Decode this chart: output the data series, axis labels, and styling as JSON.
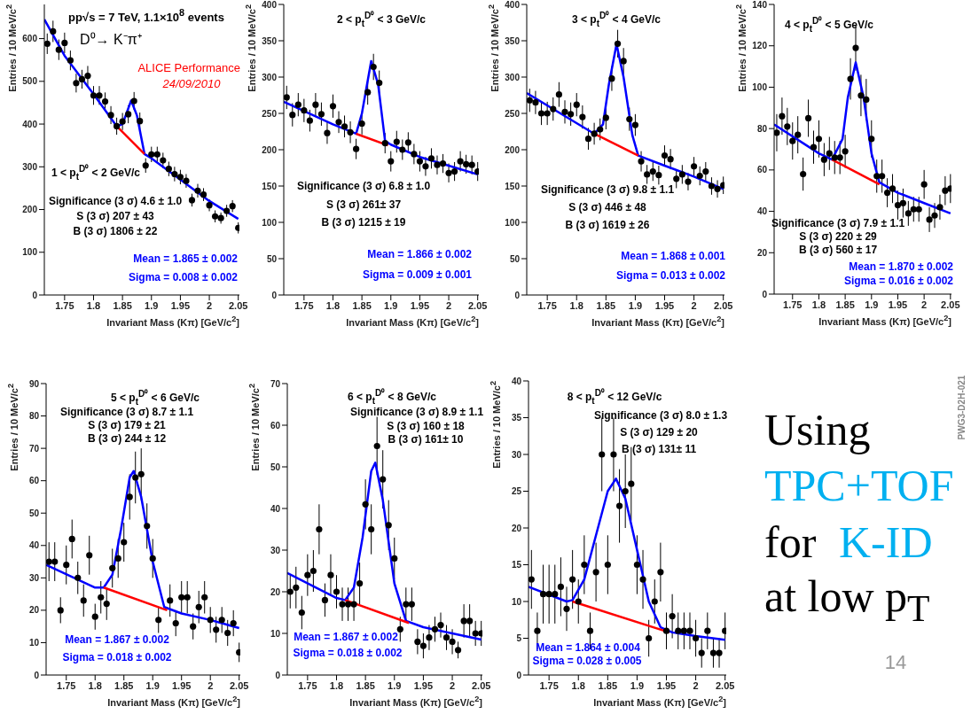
{
  "chart_data": [
    {
      "type": "scatter",
      "title": "1 < p$_{t}$$^{D⁰}$ < 2 GeV/c",
      "xlabel": "Invariant Mass (Kπ) [GeV/c$^{2}$]",
      "ylabel": "Entries / 10 MeV/c$^{2}$",
      "xlim": [
        1.715,
        2.052
      ],
      "xticks": [
        1.75,
        1.8,
        1.85,
        1.9,
        1.95,
        2,
        2.05
      ],
      "ylim": [
        0,
        680
      ],
      "yticks": [
        0,
        100,
        200,
        300,
        400,
        500,
        600
      ],
      "x": [
        1.72,
        1.73,
        1.74,
        1.75,
        1.76,
        1.77,
        1.78,
        1.79,
        1.8,
        1.81,
        1.82,
        1.83,
        1.84,
        1.85,
        1.86,
        1.87,
        1.88,
        1.89,
        1.9,
        1.91,
        1.92,
        1.93,
        1.94,
        1.95,
        1.96,
        1.97,
        1.98,
        1.99,
        2,
        2.01,
        2.02,
        2.03,
        2.04,
        2.05
      ],
      "series": [
        {
          "type": "scatter",
          "marker": "circle",
          "color": "#000000",
          "values": [
            588,
            617,
            574,
            590,
            549,
            496,
            505,
            513,
            467,
            467,
            453,
            421,
            395,
            406,
            423,
            454,
            407,
            303,
            329,
            329,
            315,
            295,
            283,
            276,
            267,
            222,
            244,
            235,
            210,
            184,
            180,
            197,
            208,
            157
          ],
          "errors": [
            24,
            25,
            24,
            24,
            23,
            22,
            22,
            23,
            22,
            22,
            21,
            21,
            20,
            20,
            21,
            21,
            20,
            17,
            18,
            18,
            18,
            17,
            17,
            17,
            16,
            15,
            16,
            15,
            14,
            14,
            13,
            14,
            14,
            13
          ]
        },
        {
          "type": "line",
          "color": "#0000ff",
          "x": [
            1.715,
            1.75,
            1.8,
            1.84,
            1.85,
            1.865,
            1.875,
            1.888,
            1.9,
            1.95,
            2,
            2.05
          ],
          "values": [
            645,
            560,
            470,
            395,
            400,
            455,
            420,
            330,
            320,
            270,
            220,
            178
          ]
        },
        {
          "type": "line",
          "color": "#ff0000",
          "x": [
            1.84,
            1.888
          ],
          "values": [
            395,
            330
          ]
        }
      ],
      "annotations": [
        "pp√s = 7 TeV, 1.1×10$^{8}$ events",
        "D⁰→ K⁻π⁺",
        "ALICE Performance",
        "24/09/2010",
        "Significance (3 σ) 4.6 ± 1.0",
        "S (3 σ) 207 ± 43",
        "B (3 σ) 1806 ± 22",
        "Mean = 1.865 ± 0.002",
        "Sigma = 0.008 ± 0.002"
      ]
    },
    {
      "type": "scatter",
      "title": "2 < p$_{t}$$^{D⁰}$ < 3 GeV/c",
      "xlabel": "Invariant Mass (Kπ) [GeV/c$^{2}$]",
      "ylabel": "Entries / 10 MeV/c$^{2}$",
      "xlim": [
        1.715,
        2.052
      ],
      "xticks": [
        1.75,
        1.8,
        1.85,
        1.9,
        1.95,
        2,
        2.05
      ],
      "ylim": [
        0,
        400
      ],
      "yticks": [
        0,
        50,
        100,
        150,
        200,
        250,
        300,
        350,
        400
      ],
      "x": [
        1.72,
        1.73,
        1.74,
        1.75,
        1.76,
        1.77,
        1.78,
        1.79,
        1.8,
        1.81,
        1.82,
        1.83,
        1.84,
        1.85,
        1.86,
        1.87,
        1.88,
        1.89,
        1.9,
        1.91,
        1.92,
        1.93,
        1.94,
        1.95,
        1.96,
        1.97,
        1.98,
        1.99,
        2,
        2.01,
        2.02,
        2.03,
        2.04,
        2.05
      ],
      "series": [
        {
          "type": "scatter",
          "marker": "circle",
          "color": "#000000",
          "values": [
            272,
            248,
            262,
            254,
            240,
            262,
            249,
            223,
            260,
            238,
            232,
            224,
            201,
            236,
            279,
            314,
            292,
            209,
            184,
            211,
            200,
            210,
            194,
            184,
            177,
            188,
            179,
            181,
            168,
            170,
            184,
            180,
            179,
            170
          ],
          "errors": [
            16,
            16,
            16,
            16,
            15,
            16,
            16,
            15,
            16,
            15,
            15,
            15,
            14,
            15,
            17,
            18,
            17,
            14,
            14,
            15,
            14,
            14,
            14,
            14,
            13,
            14,
            13,
            13,
            13,
            13,
            14,
            13,
            13,
            13
          ]
        },
        {
          "type": "line",
          "color": "#0000ff",
          "x": [
            1.715,
            1.8,
            1.84,
            1.85,
            1.866,
            1.878,
            1.89,
            1.9,
            1.95,
            2,
            2.05
          ],
          "values": [
            266,
            235,
            222,
            250,
            322,
            290,
            212,
            207,
            190,
            178,
            166
          ]
        },
        {
          "type": "line",
          "color": "#ff0000",
          "x": [
            1.84,
            1.895
          ],
          "values": [
            222,
            206
          ]
        }
      ],
      "annotations": [
        "Significance (3 σ) 6.8 ± 1.0",
        "S (3 σ) 261± 37",
        "B (3 σ) 1215 ± 19",
        "Mean = 1.866 ± 0.002",
        "Sigma = 0.009 ± 0.001"
      ]
    },
    {
      "type": "scatter",
      "title": "3 < p$_{t}$$^{D⁰}$ < 4 GeV/c",
      "xlabel": "Invariant Mass (Kπ) [GeV/c$^{2}$]",
      "ylabel": "Entries / 10 MeV/c$^{2}$",
      "xlim": [
        1.715,
        2.052
      ],
      "xticks": [
        1.75,
        1.8,
        1.85,
        1.9,
        1.95,
        2,
        2.05
      ],
      "ylim": [
        0,
        400
      ],
      "yticks": [
        0,
        50,
        100,
        150,
        200,
        250,
        300,
        350,
        400
      ],
      "x": [
        1.72,
        1.73,
        1.74,
        1.75,
        1.76,
        1.77,
        1.78,
        1.79,
        1.8,
        1.81,
        1.82,
        1.83,
        1.84,
        1.85,
        1.86,
        1.87,
        1.88,
        1.89,
        1.9,
        1.91,
        1.92,
        1.93,
        1.94,
        1.95,
        1.96,
        1.97,
        1.98,
        1.99,
        2,
        2.01,
        2.02,
        2.03,
        2.04,
        2.05
      ],
      "series": [
        {
          "type": "scatter",
          "marker": "circle",
          "color": "#000000",
          "values": [
            268,
            265,
            250,
            250,
            256,
            276,
            252,
            249,
            262,
            245,
            215,
            222,
            228,
            244,
            298,
            346,
            322,
            242,
            234,
            184,
            166,
            170,
            165,
            192,
            187,
            160,
            166,
            156,
            177,
            164,
            170,
            150,
            146,
            151
          ],
          "errors": [
            16,
            16,
            16,
            16,
            16,
            17,
            16,
            16,
            16,
            16,
            15,
            15,
            15,
            16,
            17,
            19,
            18,
            16,
            15,
            14,
            13,
            13,
            13,
            14,
            14,
            13,
            13,
            12,
            13,
            13,
            13,
            12,
            12,
            12
          ]
        },
        {
          "type": "line",
          "color": "#0000ff",
          "x": [
            1.715,
            1.83,
            1.845,
            1.855,
            1.868,
            1.88,
            1.895,
            1.905,
            1.95,
            2,
            2.05
          ],
          "values": [
            278,
            222,
            235,
            290,
            345,
            300,
            220,
            192,
            178,
            163,
            146
          ]
        },
        {
          "type": "line",
          "color": "#ff0000",
          "x": [
            1.83,
            1.905
          ],
          "values": [
            222,
            192
          ]
        }
      ],
      "annotations": [
        "Significance (3 σ) 9.8 ± 1.1",
        "S (3 σ) 446 ± 48",
        "B (3 σ) 1619 ± 26",
        "Mean = 1.868 ± 0.001",
        "Sigma = 0.013 ± 0.002"
      ]
    },
    {
      "type": "scatter",
      "title": "4 < p$_{t}$$^{D⁰}$ < 5 GeV/c",
      "xlabel": "Invariant Mass (Kπ) [GeV/c$^{2}$]",
      "ylabel": "Entries / 10 MeV/c$^{2}$",
      "xlim": [
        1.715,
        2.052
      ],
      "xticks": [
        1.75,
        1.8,
        1.85,
        1.9,
        1.95,
        2,
        2.05
      ],
      "ylim": [
        0,
        140
      ],
      "yticks": [
        0,
        20,
        40,
        60,
        80,
        100,
        120,
        140
      ],
      "x": [
        1.72,
        1.73,
        1.74,
        1.75,
        1.76,
        1.77,
        1.78,
        1.79,
        1.8,
        1.81,
        1.82,
        1.83,
        1.84,
        1.85,
        1.86,
        1.87,
        1.88,
        1.89,
        1.9,
        1.91,
        1.92,
        1.93,
        1.94,
        1.95,
        1.96,
        1.97,
        1.98,
        1.99,
        2,
        2.01,
        2.02,
        2.03,
        2.04,
        2.05
      ],
      "series": [
        {
          "type": "scatter",
          "marker": "circle",
          "color": "#000000",
          "values": [
            78,
            86,
            81,
            74,
            77,
            58,
            85,
            71,
            75,
            65,
            68,
            66,
            66,
            69,
            104,
            119,
            96,
            94,
            75,
            57,
            57,
            49,
            51,
            43,
            44,
            39,
            41,
            41,
            53,
            36,
            38,
            42,
            50,
            51
          ],
          "errors": [
            9,
            9,
            9,
            9,
            9,
            8,
            9,
            8,
            9,
            8,
            8,
            8,
            8,
            8,
            10,
            11,
            10,
            10,
            9,
            8,
            8,
            7,
            7,
            7,
            7,
            6,
            6,
            6,
            7,
            6,
            6,
            6,
            7,
            7
          ]
        },
        {
          "type": "line",
          "color": "#0000ff",
          "x": [
            1.715,
            1.8,
            1.825,
            1.845,
            1.855,
            1.87,
            1.885,
            1.9,
            1.915,
            1.95,
            2,
            2.05
          ],
          "values": [
            82,
            68,
            65,
            75,
            95,
            112,
            95,
            68,
            54,
            49,
            44,
            39
          ]
        },
        {
          "type": "line",
          "color": "#ff0000",
          "x": [
            1.825,
            1.915
          ],
          "values": [
            65,
            53
          ]
        }
      ],
      "annotations": [
        "Significance (3 σ) 7.9 ± 1.1",
        "S (3 σ) 220 ± 29",
        "B (3 σ) 560 ± 17",
        "Mean = 1.870 ± 0.002",
        "Sigma = 0.016 ± 0.002"
      ]
    },
    {
      "type": "scatter",
      "title": "5 < p$_{t}$$^{D⁰}$ < 6 GeV/c",
      "xlabel": "Invariant Mass (Kπ) [GeV/c$^{2}$]",
      "ylabel": "Entries / 10 MeV/c$^{2}$",
      "xlim": [
        1.715,
        2.052
      ],
      "xticks": [
        1.75,
        1.8,
        1.85,
        1.9,
        1.95,
        2,
        2.05
      ],
      "ylim": [
        0,
        90
      ],
      "yticks": [
        0,
        10,
        20,
        30,
        40,
        50,
        60,
        70,
        80,
        90
      ],
      "x": [
        1.72,
        1.73,
        1.74,
        1.75,
        1.76,
        1.77,
        1.78,
        1.79,
        1.8,
        1.81,
        1.82,
        1.83,
        1.84,
        1.85,
        1.86,
        1.87,
        1.88,
        1.89,
        1.9,
        1.91,
        1.92,
        1.93,
        1.94,
        1.95,
        1.96,
        1.97,
        1.98,
        1.99,
        2,
        2.01,
        2.02,
        2.03,
        2.04,
        2.05
      ],
      "series": [
        {
          "type": "scatter",
          "marker": "circle",
          "color": "#000000",
          "values": [
            35,
            35,
            20,
            34,
            42,
            30,
            23,
            37,
            18,
            24,
            22,
            33,
            36,
            41,
            55,
            61,
            62,
            46,
            36,
            17,
            null,
            23,
            16,
            24,
            24,
            15,
            21,
            24,
            17,
            14,
            17,
            13,
            16,
            7
          ],
          "errors": [
            6,
            6,
            4,
            6,
            6,
            5,
            5,
            6,
            4,
            5,
            5,
            6,
            6,
            6,
            7,
            8,
            8,
            7,
            6,
            4,
            null,
            5,
            4,
            5,
            5,
            4,
            5,
            5,
            4,
            4,
            4,
            4,
            4,
            3
          ]
        },
        {
          "type": "line",
          "color": "#0000ff",
          "x": [
            1.715,
            1.8,
            1.815,
            1.83,
            1.845,
            1.86,
            1.867,
            1.88,
            1.9,
            1.92,
            1.95,
            2,
            2.05
          ],
          "values": [
            34,
            27,
            27,
            31,
            45,
            61,
            63,
            55,
            35,
            21,
            19,
            17,
            14.5
          ]
        },
        {
          "type": "line",
          "color": "#ff0000",
          "x": [
            1.815,
            1.925
          ],
          "values": [
            27,
            20
          ]
        }
      ],
      "annotations": [
        "Significance (3 σ) 8.7 ± 1.1",
        "S (3 σ) 179 ± 21",
        "B (3 σ) 244 ± 12",
        "Mean = 1.867 ± 0.002",
        "Sigma = 0.018 ± 0.002"
      ]
    },
    {
      "type": "scatter",
      "title": "6 < p$_{t}$$^{D⁰}$ < 8 GeV/c",
      "xlabel": "Invariant Mass (Kπ) [GeV/c$^{2}$]",
      "ylabel": "Entries / 10 MeV/c$^{2}$",
      "xlim": [
        1.715,
        2.052
      ],
      "xticks": [
        1.75,
        1.8,
        1.85,
        1.9,
        1.95,
        2,
        2.05
      ],
      "ylim": [
        0,
        70
      ],
      "yticks": [
        0,
        10,
        20,
        30,
        40,
        50,
        60,
        70
      ],
      "x": [
        1.72,
        1.73,
        1.74,
        1.75,
        1.76,
        1.77,
        1.78,
        1.79,
        1.8,
        1.81,
        1.82,
        1.83,
        1.84,
        1.85,
        1.86,
        1.87,
        1.88,
        1.89,
        1.9,
        1.91,
        1.92,
        1.93,
        1.94,
        1.95,
        1.96,
        1.97,
        1.98,
        1.99,
        2,
        2.01,
        2.02,
        2.03,
        2.04,
        2.05
      ],
      "series": [
        {
          "type": "scatter",
          "marker": "circle",
          "color": "#000000",
          "values": [
            20,
            21,
            15,
            24,
            25,
            35,
            18,
            24,
            20,
            17,
            17,
            17,
            22,
            41,
            35,
            55,
            47,
            36,
            28,
            11,
            17,
            17,
            8,
            7,
            9,
            11,
            12,
            9,
            8,
            6,
            13,
            13,
            10,
            10
          ],
          "errors": [
            4,
            5,
            4,
            5,
            5,
            6,
            4,
            5,
            4,
            4,
            4,
            4,
            5,
            6,
            6,
            7,
            7,
            6,
            5,
            3,
            4,
            4,
            3,
            3,
            3,
            3,
            3,
            3,
            3,
            2,
            4,
            4,
            3,
            3
          ]
        },
        {
          "type": "line",
          "color": "#0000ff",
          "x": [
            1.715,
            1.8,
            1.815,
            1.83,
            1.845,
            1.86,
            1.867,
            1.88,
            1.9,
            1.92,
            1.95,
            2,
            2.05
          ],
          "values": [
            24.5,
            18.5,
            18,
            21,
            33,
            49,
            51,
            42,
            22,
            13,
            11.5,
            10,
            8.5
          ]
        },
        {
          "type": "line",
          "color": "#ff0000",
          "x": [
            1.815,
            1.925
          ],
          "values": [
            18,
            12.5
          ]
        }
      ],
      "annotations": [
        "Significance (3 σ) 8.9 ± 1.1",
        "S (3 σ) 160 ± 18",
        "B (3 σ) 161± 10",
        "Mean = 1.867 ± 0.002",
        "Sigma = 0.018 ± 0.002"
      ]
    },
    {
      "type": "scatter",
      "title": "8 < p$_{t}$$^{D⁰}$ < 12 GeV/c",
      "xlabel": "Invariant Mass (Kπ) [GeV/c$^{2}$]",
      "ylabel": "Entries / 10 MeV/c$^{2}$",
      "xlim": [
        1.715,
        2.052
      ],
      "xticks": [
        1.75,
        1.8,
        1.85,
        1.9,
        1.95,
        2,
        2.05
      ],
      "ylim": [
        0,
        40
      ],
      "yticks": [
        0,
        5,
        10,
        15,
        20,
        25,
        30,
        35,
        40
      ],
      "x": [
        1.72,
        1.73,
        1.74,
        1.75,
        1.76,
        1.77,
        1.78,
        1.79,
        1.8,
        1.81,
        1.82,
        1.83,
        1.84,
        1.85,
        1.86,
        1.87,
        1.88,
        1.89,
        1.9,
        1.91,
        1.92,
        1.93,
        1.94,
        1.95,
        1.96,
        1.97,
        1.98,
        1.99,
        2,
        2.01,
        2.02,
        2.03,
        2.04,
        2.05
      ],
      "series": [
        {
          "type": "scatter",
          "marker": "circle",
          "color": "#000000",
          "values": [
            13,
            6,
            11,
            11,
            11,
            12,
            9,
            13,
            10,
            15,
            6,
            14,
            30,
            15,
            30,
            23,
            25,
            26,
            15,
            13,
            5,
            10,
            14,
            6,
            8,
            6,
            6,
            6,
            5,
            3,
            6,
            3,
            3,
            6
          ],
          "errors": [
            4,
            2.5,
            4,
            4,
            4,
            4,
            3,
            4,
            3,
            4,
            2.5,
            4,
            5,
            4,
            5,
            5,
            5,
            5,
            4,
            4,
            2.5,
            3,
            4,
            2.5,
            3,
            2.5,
            2.5,
            2.5,
            2.5,
            2,
            2.5,
            2,
            2,
            2.5
          ]
        },
        {
          "type": "line",
          "color": "#0000ff",
          "x": [
            1.715,
            1.78,
            1.79,
            1.81,
            1.83,
            1.85,
            1.864,
            1.88,
            1.9,
            1.92,
            1.94,
            1.96,
            2,
            2.05
          ],
          "values": [
            12,
            10,
            10.2,
            13,
            19,
            25,
            26.7,
            24,
            17,
            10,
            6.5,
            5.8,
            5.3,
            4.8
          ]
        },
        {
          "type": "line",
          "color": "#ff0000",
          "x": [
            1.79,
            1.955
          ],
          "values": [
            10,
            5.8
          ]
        }
      ],
      "annotations": [
        "Significance (3 σ) 8.0 ± 1.3",
        "S (3 σ) 129 ± 20",
        "B (3 σ) 131± 11",
        "Mean = 1.864 ± 0.004",
        "Sigma = 0.028 ± 0.005"
      ]
    },
    {
      "type": "other",
      "annotations": [
        "Using",
        "TPC+TOF",
        "for",
        "K-ID",
        "at low p$_{T}$",
        "14",
        "PWG3-D2H-021"
      ]
    }
  ]
}
